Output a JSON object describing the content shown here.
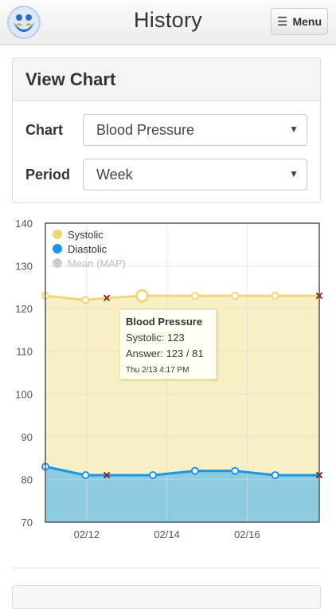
{
  "header": {
    "title": "History",
    "menu_label": "Menu"
  },
  "panel": {
    "heading": "View Chart",
    "chart_field": {
      "label": "Chart",
      "value": "Blood Pressure"
    },
    "period_field": {
      "label": "Period",
      "value": "Week"
    }
  },
  "colors": {
    "systolic": "#f0d878",
    "systolic_fill": "#f8f0c4",
    "diastolic": "#1a96e8",
    "diastolic_fill": "#8ccbe0",
    "missing_marker": "#8b1a1a"
  },
  "tooltip": {
    "title": "Blood Pressure",
    "line1": "Systolic: 123",
    "line2": "Answer: 123 / 81",
    "time": "Thu 2/13 4:17 PM"
  },
  "chart_data": {
    "type": "area",
    "x_tick_labels": [
      "02/12",
      "02/14",
      "02/16"
    ],
    "x_tick_days": [
      12,
      14,
      16
    ],
    "x_range_days": [
      10.97,
      17.8
    ],
    "ylim": [
      70,
      140
    ],
    "y_ticks": [
      70,
      80,
      90,
      100,
      110,
      120,
      130,
      140
    ],
    "grid": true,
    "legend_position": "top-left",
    "legend": [
      "Systolic",
      "Diastolic",
      "Mean (MAP)"
    ],
    "series": [
      {
        "name": "Systolic",
        "x_days": [
          10.97,
          11.97,
          12.5,
          13.38,
          14.7,
          15.7,
          16.7,
          17.8
        ],
        "values": [
          123,
          122,
          122.5,
          123,
          123,
          123,
          123,
          123
        ],
        "missing": [
          false,
          false,
          true,
          false,
          false,
          false,
          false,
          true
        ],
        "highlight_index": 3
      },
      {
        "name": "Diastolic",
        "x_days": [
          10.97,
          11.97,
          12.5,
          13.65,
          14.7,
          15.7,
          16.7,
          17.8
        ],
        "values": [
          83,
          81,
          81,
          81,
          82,
          82,
          81,
          81
        ],
        "missing": [
          false,
          false,
          true,
          false,
          false,
          false,
          false,
          true
        ]
      },
      {
        "name": "Mean (MAP)",
        "hidden": true,
        "values": []
      }
    ]
  }
}
